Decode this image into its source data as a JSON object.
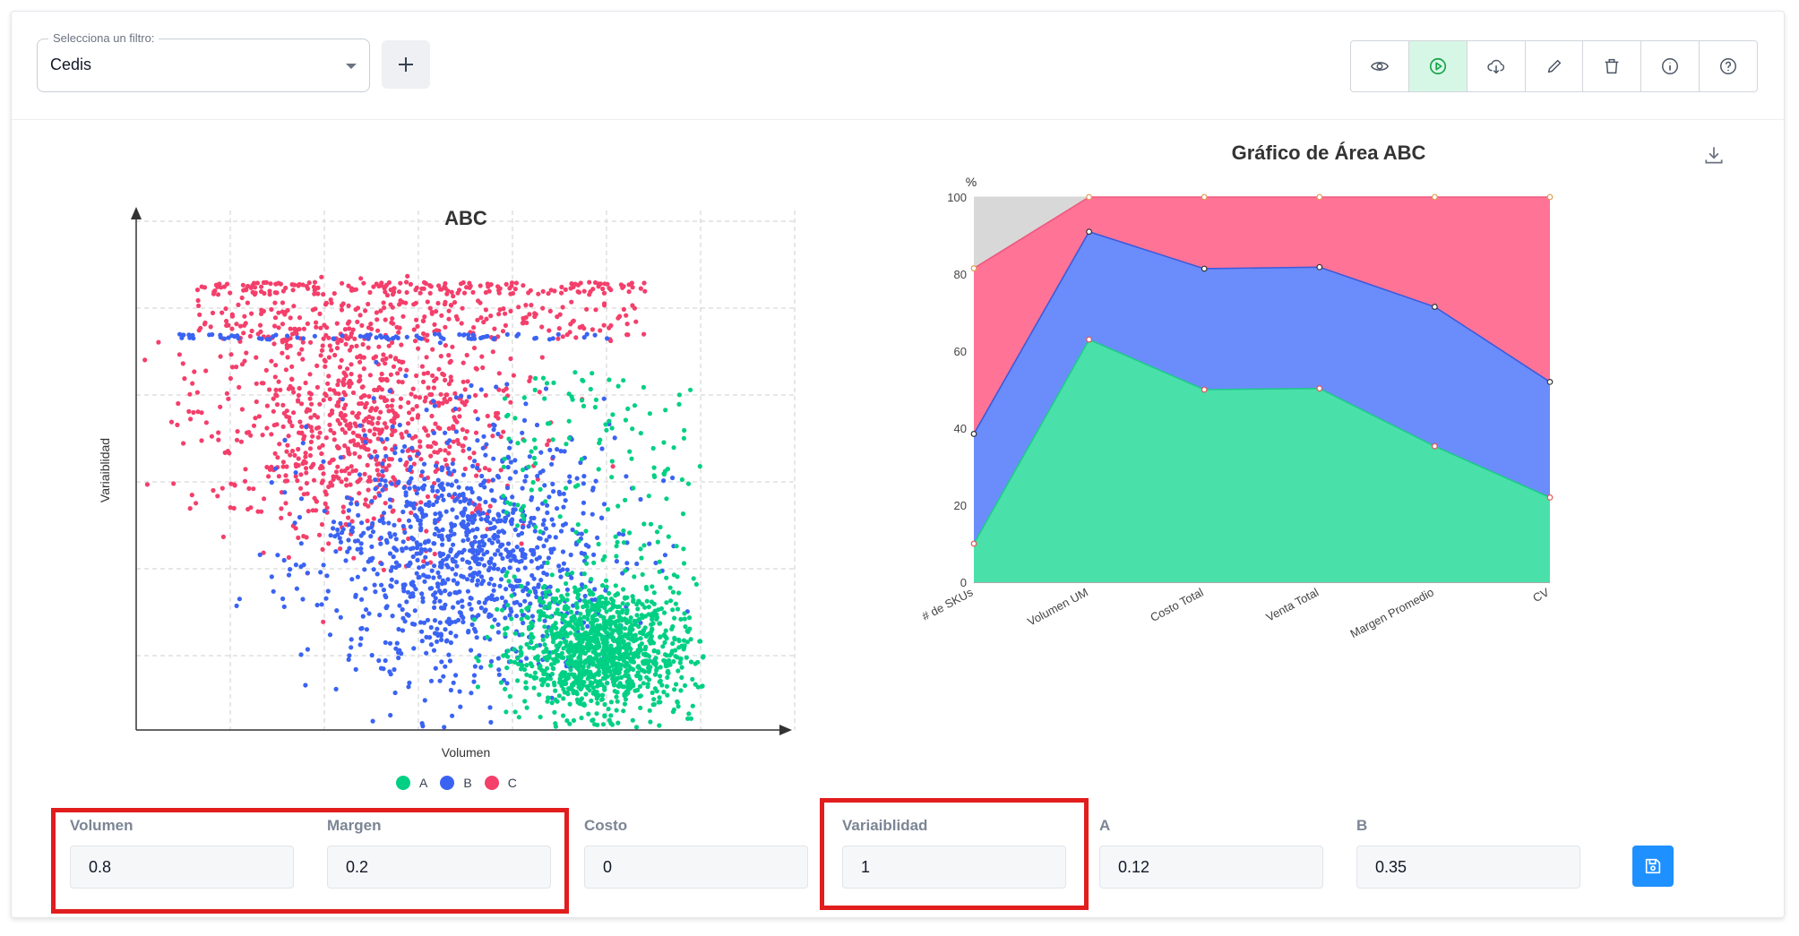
{
  "filter": {
    "legend": "Selecciona un filtro:",
    "value": "Cedis"
  },
  "toolbar": {
    "icons": [
      "eye-icon",
      "play-circle-icon",
      "cloud-download-icon",
      "pencil-icon",
      "trash-icon",
      "info-icon",
      "help-icon"
    ],
    "active_index": 1,
    "active_color": "#22c55e"
  },
  "colors": {
    "A": "#00d084",
    "B": "#3b63f3",
    "C": "#f43f6b",
    "gray": "#d8d8d8"
  },
  "legend": [
    "A",
    "B",
    "C"
  ],
  "chart_data": [
    {
      "type": "scatter",
      "title": "ABC",
      "xlabel": "Volumen",
      "ylabel": "Variaiblidad",
      "grid": true,
      "legend_placement": "bottom",
      "series": [
        {
          "name": "A",
          "description_points": "dense cluster at high volume, low variability"
        },
        {
          "name": "B",
          "description_points": "broad cluster at mid volume, mid variability"
        },
        {
          "name": "C",
          "description_points": "spread at low volume, high variability"
        }
      ]
    },
    {
      "type": "area",
      "title": "Gráfico de Área ABC",
      "ylabel": "%",
      "ylim": [
        0,
        100
      ],
      "yticks": [
        0,
        20,
        40,
        60,
        80,
        100
      ],
      "categories": [
        "# de SKUs",
        "Volumen UM",
        "Costo Total",
        "Venta Total",
        "Margen Promedio",
        "CV"
      ],
      "series": [
        {
          "name": "A",
          "values": [
            10,
            63,
            50,
            50.3,
            35.3,
            22
          ]
        },
        {
          "name": "B",
          "values": [
            28.5,
            28,
            31.4,
            31.5,
            36.2,
            30
          ]
        },
        {
          "name": "C",
          "values": [
            43,
            9,
            18.6,
            18.2,
            28.5,
            48
          ]
        }
      ],
      "stacked": true
    }
  ],
  "fields": {
    "volumen": {
      "label": "Volumen",
      "value": "0.8"
    },
    "margen": {
      "label": "Margen",
      "value": "0.2"
    },
    "costo": {
      "label": "Costo",
      "value": "0"
    },
    "variabilidad": {
      "label": "Variaiblidad",
      "value": "1"
    },
    "a": {
      "label": "A",
      "value": "0.12"
    },
    "b": {
      "label": "B",
      "value": "0.35"
    }
  }
}
